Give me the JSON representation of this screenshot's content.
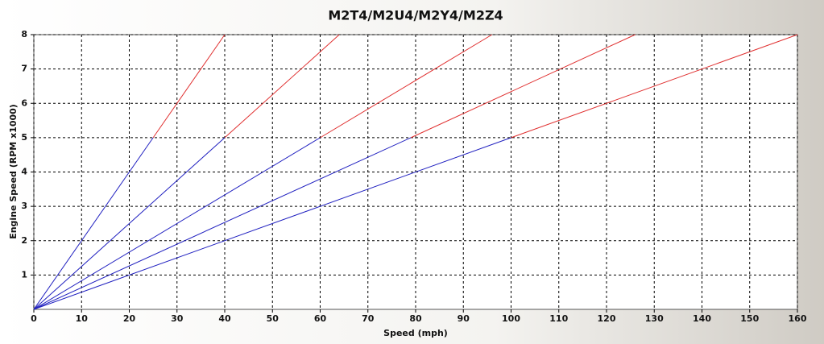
{
  "chart_data": {
    "type": "line",
    "title": "M2T4/M2U4/M2Y4/M2Z4",
    "x_label": "Speed (mph)",
    "y_label": "Engine Speed (RPM x1000)",
    "xlim": [
      0,
      160
    ],
    "ylim": [
      0,
      8
    ],
    "xticks": [
      0,
      10,
      20,
      30,
      40,
      50,
      60,
      70,
      80,
      90,
      100,
      110,
      120,
      130,
      140,
      150,
      160
    ],
    "yticks": [
      1,
      2,
      3,
      4,
      5,
      6,
      7,
      8
    ],
    "grid": true,
    "series": [
      {
        "color": "#2020c0",
        "x": [
          0,
          25
        ],
        "values": [
          0,
          5
        ]
      },
      {
        "color": "#e03030",
        "x": [
          25,
          40
        ],
        "values": [
          5,
          8
        ]
      },
      {
        "color": "#2020c0",
        "x": [
          0,
          40
        ],
        "values": [
          0,
          5
        ]
      },
      {
        "color": "#e03030",
        "x": [
          40,
          64
        ],
        "values": [
          5,
          8
        ]
      },
      {
        "color": "#2020c0",
        "x": [
          0,
          60
        ],
        "values": [
          0,
          5
        ]
      },
      {
        "color": "#e03030",
        "x": [
          60,
          96
        ],
        "values": [
          5,
          8
        ]
      },
      {
        "color": "#2020c0",
        "x": [
          0,
          79
        ],
        "values": [
          0,
          5
        ]
      },
      {
        "color": "#e03030",
        "x": [
          79,
          126
        ],
        "values": [
          5,
          8
        ]
      },
      {
        "color": "#2020c0",
        "x": [
          0,
          100
        ],
        "values": [
          0,
          5
        ]
      },
      {
        "color": "#e03030",
        "x": [
          100,
          160
        ],
        "values": [
          5,
          8
        ]
      }
    ]
  }
}
